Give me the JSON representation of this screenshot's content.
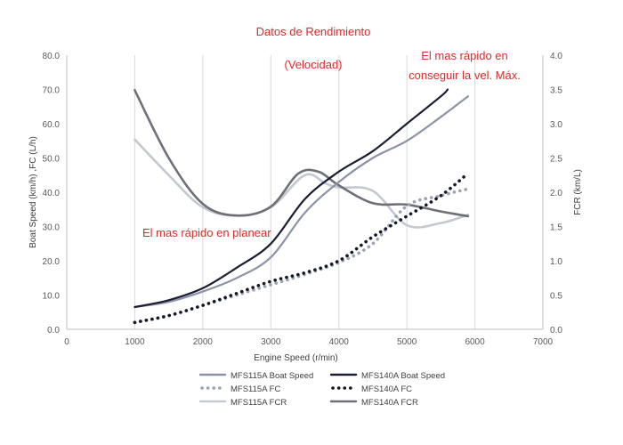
{
  "chart_data": {
    "type": "line",
    "title": "Datos de Rendimiento",
    "subtitle": "(Velocidad)",
    "xlabel": "Engine Speed (r/min)",
    "ylabel_left": "Boat Speed (km/h) ,FC (L/h)",
    "ylabel_right": "FCR (km/L)",
    "xlim": [
      0,
      7000
    ],
    "ylim_left": [
      0,
      80
    ],
    "ylim_right": [
      0,
      4
    ],
    "x_ticks": [
      0,
      1000,
      2000,
      3000,
      4000,
      5000,
      6000,
      7000
    ],
    "y_left_ticks": [
      "0.0",
      "10.0",
      "20.0",
      "30.0",
      "40.0",
      "50.0",
      "60.0",
      "70.0",
      "80.0"
    ],
    "y_right_ticks": [
      "0.0",
      "0.5",
      "1.0",
      "1.5",
      "2.0",
      "2.5",
      "3.0",
      "3.5",
      "4.0"
    ],
    "grid": "vertical",
    "legend_position": "bottom",
    "annotations": [
      {
        "text": "El mas rápido en",
        "color": "#d92b2b"
      },
      {
        "text": "conseguir la vel. Máx.",
        "color": "#d92b2b"
      },
      {
        "text": "El mas rápido en planear",
        "color": "#d92b2b"
      }
    ],
    "series": [
      {
        "name": "MFS115A Boat Speed",
        "axis": "left",
        "color": "#8c93a6",
        "style": "solid",
        "x": [
          1000,
          1500,
          2000,
          2500,
          3000,
          3500,
          4000,
          4500,
          5000,
          5500,
          5900
        ],
        "y": [
          6.5,
          8,
          11,
          15,
          21,
          34,
          43,
          50,
          55,
          62,
          68
        ]
      },
      {
        "name": "MFS140A Boat Speed",
        "axis": "left",
        "color": "#1b1d33",
        "style": "solid",
        "x": [
          1000,
          1500,
          2000,
          2500,
          3000,
          3500,
          4000,
          4500,
          5000,
          5500,
          5600
        ],
        "y": [
          6.5,
          8.5,
          12,
          18,
          25,
          38,
          46,
          52,
          60,
          68,
          70
        ]
      },
      {
        "name": "MFS115A FC",
        "axis": "left",
        "color": "#9aa3b3",
        "style": "dotted",
        "x": [
          1000,
          1500,
          2000,
          2500,
          3000,
          3500,
          4000,
          4500,
          5000,
          5500,
          5900
        ],
        "y": [
          2,
          4,
          7,
          10,
          13,
          16,
          19.5,
          25,
          36,
          39,
          41
        ]
      },
      {
        "name": "MFS140A FC",
        "axis": "left",
        "color": "#14162a",
        "style": "dotted",
        "x": [
          1000,
          1500,
          2000,
          2500,
          3000,
          3500,
          4000,
          4500,
          5000,
          5500,
          5900
        ],
        "y": [
          2,
          4,
          7,
          10.5,
          14,
          16.5,
          20,
          27,
          33,
          39,
          45.5
        ]
      },
      {
        "name": "MFS115A FCR",
        "axis": "right",
        "color": "#c4c8d0",
        "style": "solid",
        "x": [
          1000,
          1500,
          2000,
          2500,
          3000,
          3500,
          3800,
          4000,
          4500,
          5000,
          5500,
          5900
        ],
        "y": [
          2.77,
          2.25,
          1.78,
          1.66,
          1.78,
          2.25,
          2.13,
          2.07,
          2.02,
          1.52,
          1.55,
          1.67
        ]
      },
      {
        "name": "MFS140A FCR",
        "axis": "right",
        "color": "#6e6f78",
        "style": "solid",
        "x": [
          1000,
          1500,
          2000,
          2500,
          3000,
          3400,
          3700,
          4000,
          4500,
          5000,
          5500,
          5900
        ],
        "y": [
          3.49,
          2.5,
          1.83,
          1.66,
          1.79,
          2.27,
          2.3,
          2.1,
          1.84,
          1.82,
          1.72,
          1.65
        ]
      }
    ]
  }
}
